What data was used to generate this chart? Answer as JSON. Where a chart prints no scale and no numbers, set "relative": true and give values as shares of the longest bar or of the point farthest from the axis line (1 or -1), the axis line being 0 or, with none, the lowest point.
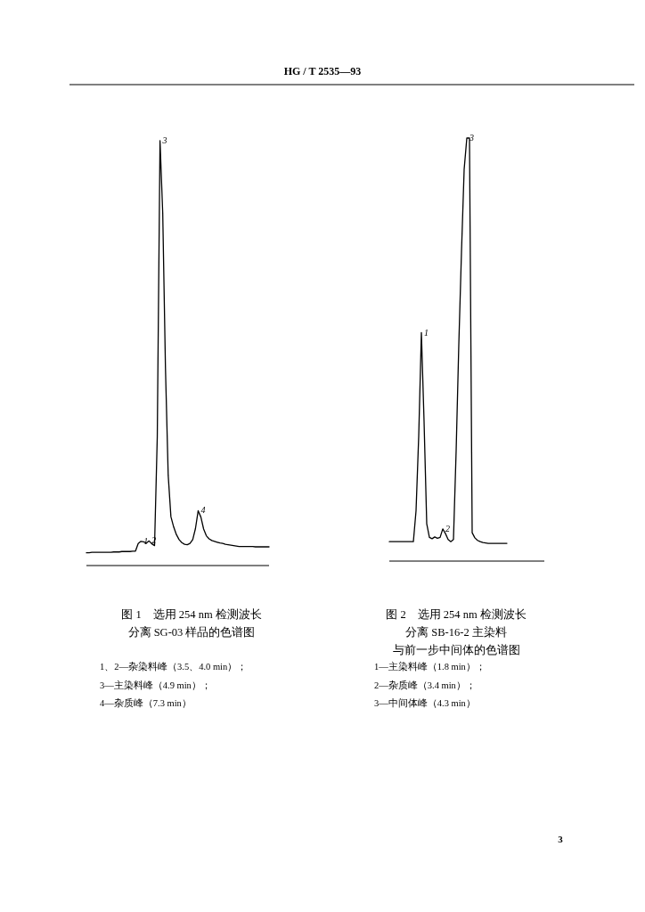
{
  "chart_data": [
    {
      "type": "line",
      "relative": true,
      "title": "图 1　选用 254 nm 检测波长",
      "subtitle": "分离 SG-03 样品的色谱图",
      "categories": [
        null,
        null,
        null,
        null,
        null,
        null,
        null,
        null,
        null,
        null,
        null,
        null,
        null,
        null,
        null,
        null,
        null,
        null,
        null,
        null,
        null,
        null,
        null,
        null,
        null,
        null,
        null,
        null,
        null,
        null,
        null,
        null,
        null,
        null,
        null,
        null,
        null,
        null,
        null,
        null,
        null,
        null,
        null,
        null,
        null,
        null,
        null,
        null,
        null,
        null,
        null,
        null,
        null,
        null,
        null,
        null,
        null,
        null,
        null,
        null,
        null,
        null,
        null,
        null,
        null,
        null,
        null,
        null
      ],
      "series": [
        {
          "color": "#000000",
          "values": [
            0.03,
            0.03,
            0.031,
            0.031,
            0.031,
            0.031,
            0.031,
            0.031,
            0.031,
            0.031,
            0.032,
            0.032,
            0.032,
            0.033,
            0.033,
            0.033,
            0.033,
            0.034,
            0.034,
            0.052,
            0.057,
            0.056,
            0.053,
            0.058,
            0.051,
            0.047,
            0.304,
            1,
            0.829,
            0.465,
            0.213,
            0.115,
            0.091,
            0.073,
            0.061,
            0.054,
            0.05,
            0.049,
            0.052,
            0.061,
            0.087,
            0.129,
            0.114,
            0.086,
            0.07,
            0.063,
            0.059,
            0.057,
            0.055,
            0.053,
            0.052,
            0.05,
            0.049,
            0.048,
            0.047,
            0.046,
            0.045,
            0.045,
            0.045,
            0.045,
            0.045,
            0.045,
            0.044,
            0.044,
            0.044,
            0.044,
            0.044,
            0.044
          ]
        }
      ],
      "annotations": [
        "HG / T 2535—93",
        {
          "text": "1",
          "y": 0.057
        },
        {
          "text": "2",
          "y": 0.058
        },
        {
          "text": "3",
          "y": 1
        },
        {
          "text": "4",
          "y": 0.129
        },
        "1、2—杂染料峰（3.5、4.0 min）；",
        "3—主染料峰（4.9 min）；",
        "4—杂质峰（7.3 min）"
      ]
    },
    {
      "type": "line",
      "relative": true,
      "title": "图 2　选用 254 nm 检测波长",
      "subtitle": "分离 SB-16-2 主染料",
      "categories": [
        null,
        null,
        null,
        null,
        null,
        null,
        null,
        null,
        null,
        null,
        null,
        null,
        null,
        null,
        null,
        null,
        null,
        null,
        null,
        null,
        null,
        null,
        null,
        null,
        null,
        null,
        null,
        null,
        null,
        null,
        null,
        null,
        null,
        null,
        null,
        null,
        null,
        null,
        null,
        null,
        null,
        null,
        null,
        null,
        null,
        null,
        null,
        null,
        null,
        null,
        null,
        null,
        null,
        null,
        null,
        null,
        null,
        null,
        null
      ],
      "series": [
        {
          "color": "#000000",
          "values": [
            0.046,
            0.046,
            0.046,
            0.046,
            0.046,
            0.046,
            0.046,
            0.046,
            0.046,
            0.046,
            0.119,
            0.295,
            0.54,
            0.33,
            0.088,
            0.056,
            0.053,
            0.057,
            0.054,
            0.056,
            0.076,
            0.065,
            0.051,
            0.046,
            0.051,
            0.26,
            0.512,
            0.73,
            0.926,
            1,
            1,
            0.067,
            0.055,
            0.049,
            0.046,
            0.044,
            0.043,
            0.042,
            0.042,
            0.042,
            0.042,
            0.042,
            0.042,
            0.042,
            0.042,
            null,
            null,
            null,
            null,
            null,
            null,
            null,
            null,
            null,
            null,
            null,
            null,
            null,
            null
          ]
        }
      ],
      "annotations": [
        "与前一步中间体的色谱图",
        {
          "text": "1",
          "y": 0.54
        },
        {
          "text": "2",
          "y": 0.076
        },
        {
          "text": "3",
          "y": 1
        },
        "1—主染料峰（1.8 min）；",
        "2—杂质峰（3.4 min）；",
        "3—中间体峰（4.3 min）",
        "3"
      ]
    }
  ]
}
